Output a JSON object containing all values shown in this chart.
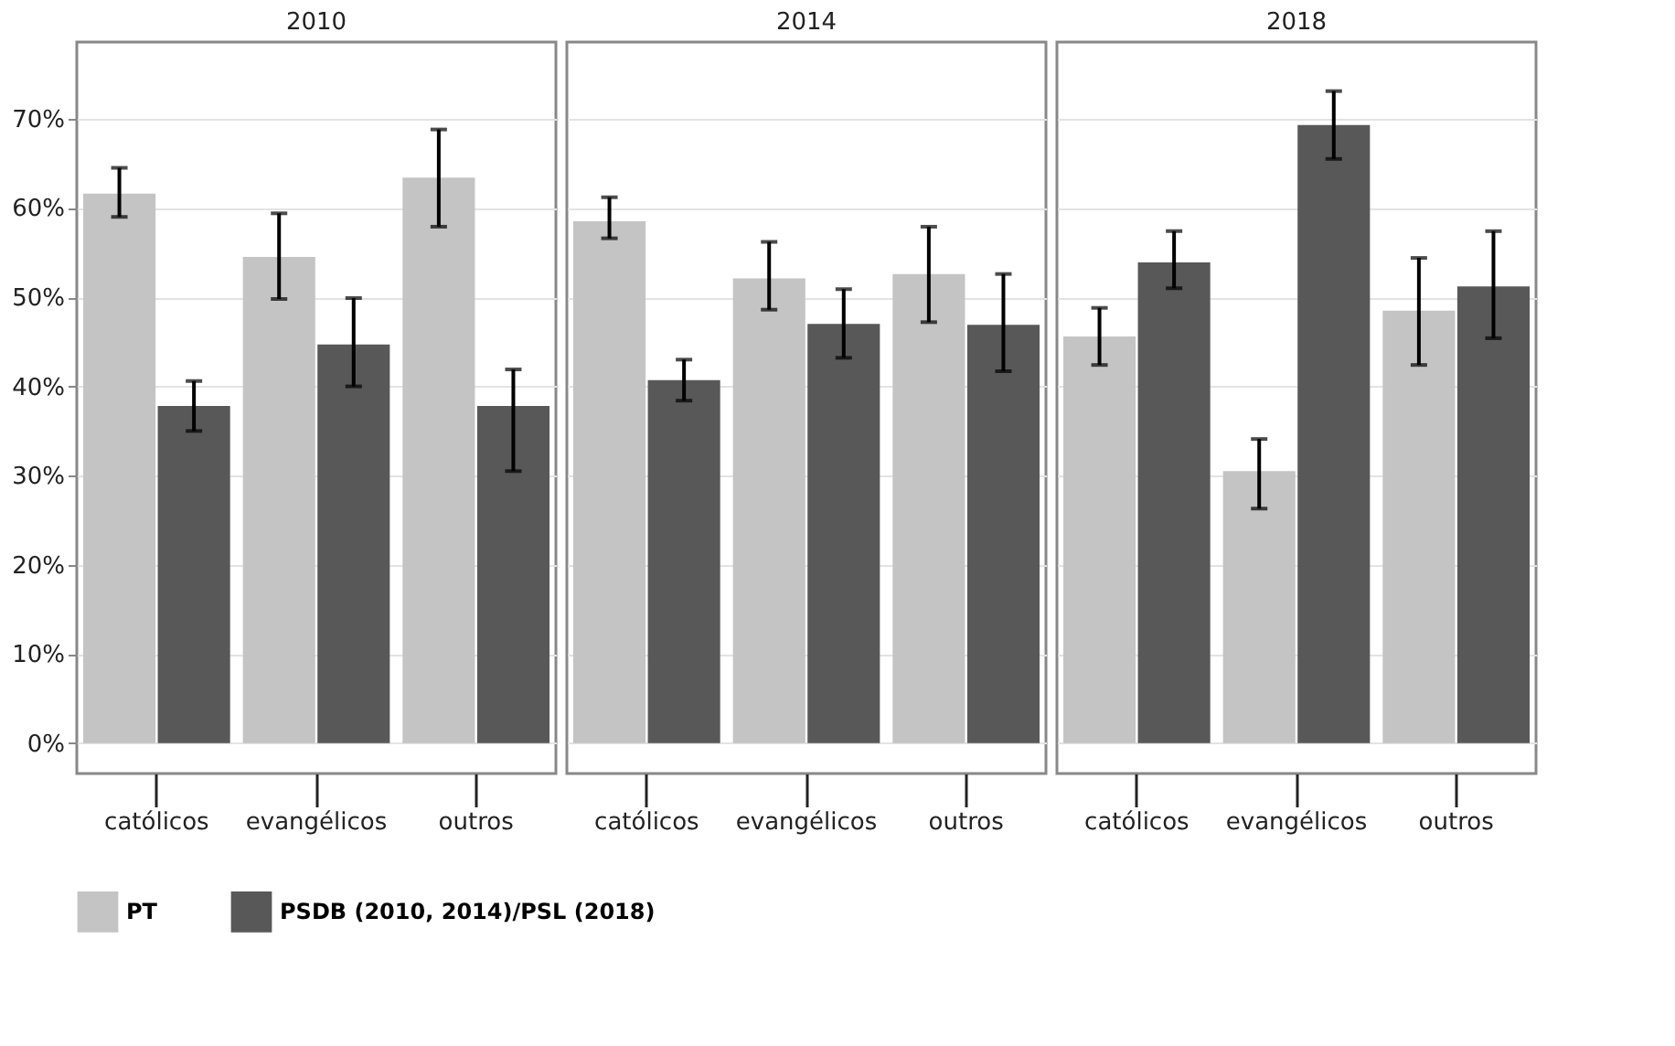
{
  "chart_data": [
    {
      "type": "bar",
      "title": "2010",
      "categories": [
        "católicos",
        "evangélicos",
        "outros"
      ],
      "ylim": [
        -3.4,
        78.6
      ],
      "yticks": [
        {
          "value": 0,
          "label": "0%"
        },
        {
          "value": 10,
          "label": "10%"
        },
        {
          "value": 20,
          "label": "20%"
        },
        {
          "value": 30,
          "label": "30%"
        },
        {
          "value": 40,
          "label": "40%"
        },
        {
          "value": 50,
          "label": "50%"
        },
        {
          "value": 60,
          "label": "60%"
        },
        {
          "value": 70,
          "label": "70%"
        }
      ],
      "grid": "y",
      "legend": "bottom",
      "series": [
        {
          "name": "PT",
          "color": "#c4c4c4",
          "values": [
            61.6,
            54.5,
            63.4
          ],
          "errors": [
            [
              59.0,
              64.5
            ],
            [
              49.8,
              59.4
            ],
            [
              57.9,
              68.8
            ]
          ]
        },
        {
          "name": "PSDB (2010, 2014)/PSL (2018)",
          "color": "#585858",
          "values": [
            37.8,
            44.7,
            37.8
          ],
          "errors": [
            [
              35.0,
              40.6
            ],
            [
              40.0,
              49.9
            ],
            [
              30.5,
              41.9
            ]
          ]
        }
      ]
    },
    {
      "type": "bar",
      "title": "2014",
      "categories": [
        "católicos",
        "evangélicos",
        "outros"
      ],
      "ylim": [
        -3.4,
        78.6
      ],
      "yticks": [
        0,
        10,
        20,
        30,
        40,
        50,
        60,
        70
      ],
      "grid": "y",
      "tick_labels": "x",
      "series": [
        {
          "name": "PT",
          "color": "#c4c4c4",
          "values": [
            58.5,
            52.1,
            52.6
          ],
          "errors": [
            [
              56.6,
              61.2
            ],
            [
              48.6,
              56.2
            ],
            [
              47.2,
              57.9
            ]
          ]
        },
        {
          "name": "PSDB (2010, 2014)/PSL (2018)",
          "color": "#585858",
          "values": [
            40.7,
            47.0,
            46.9
          ],
          "errors": [
            [
              38.4,
              43.0
            ],
            [
              43.2,
              50.9
            ],
            [
              41.7,
              52.6
            ]
          ]
        }
      ]
    },
    {
      "type": "bar",
      "title": "2018",
      "categories": [
        "católicos",
        "evangélicos",
        "outros"
      ],
      "ylim": [
        -3.4,
        78.6
      ],
      "yticks": [
        0,
        10,
        20,
        30,
        40,
        50,
        60,
        70
      ],
      "grid": "y",
      "tick_labels": "x",
      "series": [
        {
          "name": "PT",
          "color": "#c4c4c4",
          "values": [
            45.6,
            30.5,
            48.5
          ],
          "errors": [
            [
              42.4,
              48.8
            ],
            [
              26.3,
              34.1
            ],
            [
              42.4,
              54.4
            ]
          ]
        },
        {
          "name": "PSDB (2010, 2014)/PSL (2018)",
          "color": "#585858",
          "values": [
            53.9,
            69.3,
            51.2
          ],
          "errors": [
            [
              51.0,
              57.4
            ],
            [
              65.5,
              73.1
            ],
            [
              45.4,
              57.4
            ]
          ]
        }
      ]
    }
  ]
}
